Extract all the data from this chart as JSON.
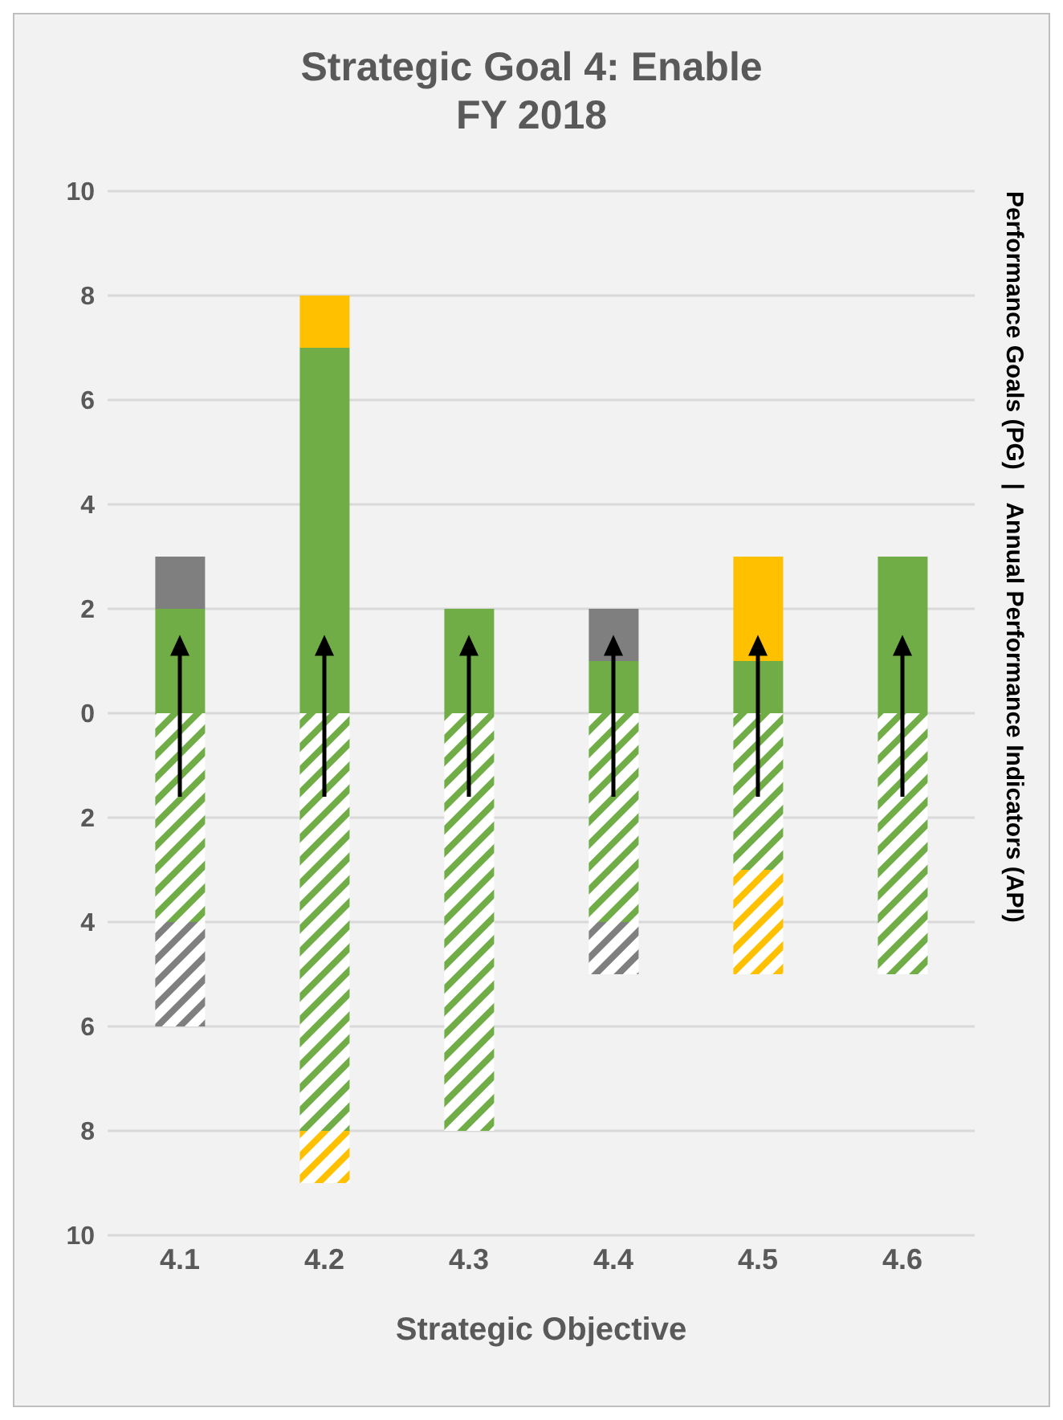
{
  "chart_data": {
    "type": "bar",
    "title": "Strategic Goal 4: Enable\nFY 2018",
    "xlabel": "Strategic Objective",
    "ylabel": "Performance Goals (PG)  |  Annual Performance Indicators (API)",
    "categories": [
      "4.1",
      "4.2",
      "4.3",
      "4.4",
      "4.5",
      "4.6"
    ],
    "stacked": true,
    "series": [
      {
        "color": "#70ad47",
        "values": [
          2,
          7,
          2,
          1,
          1,
          3
        ]
      },
      {
        "color": "#7f7f7f",
        "values": [
          1,
          null,
          null,
          1,
          null,
          null
        ]
      },
      {
        "color": "#ffc000",
        "values": [
          null,
          1,
          null,
          null,
          2,
          null
        ]
      },
      {
        "color": "#70ad47",
        "values": [
          -4,
          -8,
          -8,
          -4,
          -3,
          -5
        ]
      },
      {
        "color": "#7f7f7f",
        "values": [
          -2,
          null,
          null,
          -1,
          null,
          null
        ]
      },
      {
        "color": "#ffc000",
        "values": [
          null,
          -1,
          null,
          null,
          -2,
          null
        ]
      }
    ],
    "ylim": [
      -10,
      10
    ],
    "yticks": [
      {
        "value": -10,
        "label": "10"
      },
      {
        "value": -8,
        "label": "8"
      },
      {
        "value": -6,
        "label": "6"
      },
      {
        "value": -4,
        "label": "4"
      },
      {
        "value": -2,
        "label": "2"
      },
      0,
      2,
      4,
      6,
      8,
      10
    ],
    "grid": "y"
  }
}
